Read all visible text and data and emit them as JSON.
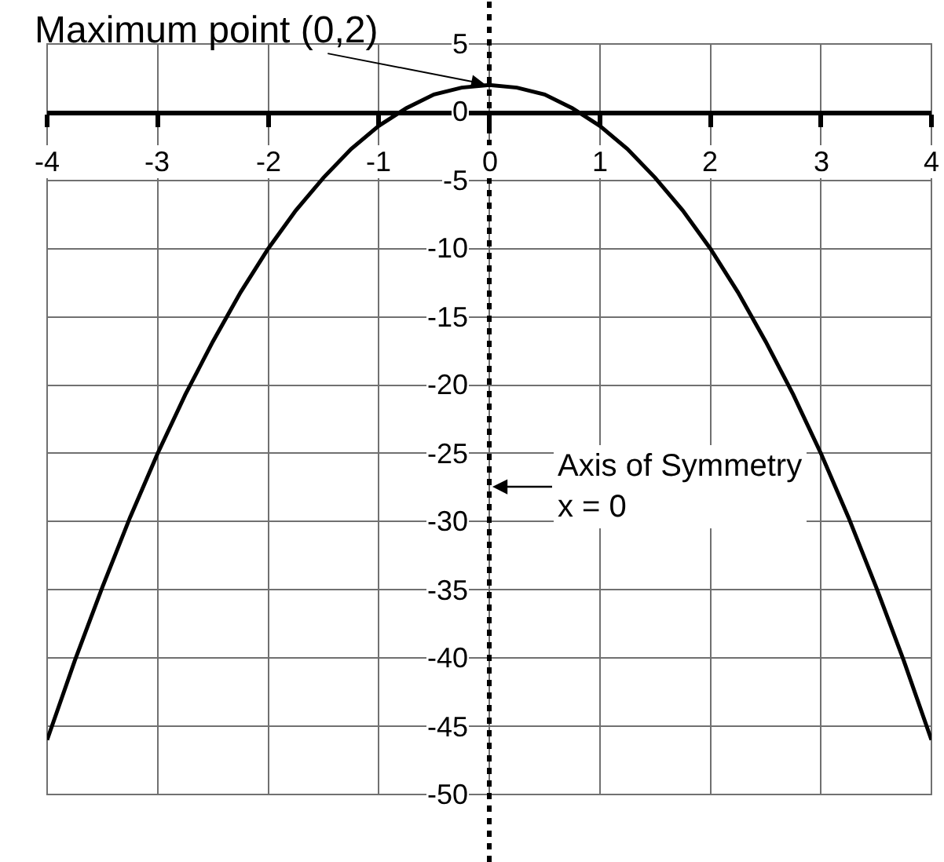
{
  "chart_data": {
    "type": "line",
    "x": [
      -4,
      -3.75,
      -3.5,
      -3.25,
      -3,
      -2.75,
      -2.5,
      -2.25,
      -2,
      -1.75,
      -1.5,
      -1.25,
      -1,
      -0.75,
      -0.5,
      -0.25,
      0,
      0.25,
      0.5,
      0.75,
      1,
      1.25,
      1.5,
      1.75,
      2,
      2.25,
      2.5,
      2.75,
      3,
      3.25,
      3.5,
      3.75,
      4
    ],
    "values": [
      -46,
      -40.2,
      -34.8,
      -29.7,
      -25,
      -20.7,
      -16.8,
      -13.2,
      -10,
      -7.2,
      -4.8,
      -2.7,
      -1,
      0.3,
      1.3,
      1.8,
      2,
      1.8,
      1.3,
      0.3,
      -1,
      -2.7,
      -4.8,
      -7.2,
      -10,
      -13.2,
      -16.8,
      -20.7,
      -25,
      -29.7,
      -34.8,
      -40.2,
      -46
    ],
    "color": "#000000",
    "xlim": [
      -4,
      4
    ],
    "ylim": [
      -50,
      5
    ],
    "xticks": [
      -4,
      -3,
      -2,
      -1,
      0,
      1,
      2,
      3,
      4
    ],
    "yticks": [
      5,
      0,
      -5,
      -10,
      -15,
      -20,
      -25,
      -30,
      -35,
      -40,
      -45,
      -50
    ],
    "grid": true,
    "marker": "none",
    "line_style": "solid",
    "annotations": [
      {
        "text": "Maximum point (0,2)",
        "x": 0,
        "y": 2
      }
    ],
    "ref_lines": [
      {
        "axis": "x",
        "value": 0,
        "label": "Axis of Symmetry\nx = 0",
        "line_style": "dotted",
        "color": "#000000"
      }
    ]
  }
}
